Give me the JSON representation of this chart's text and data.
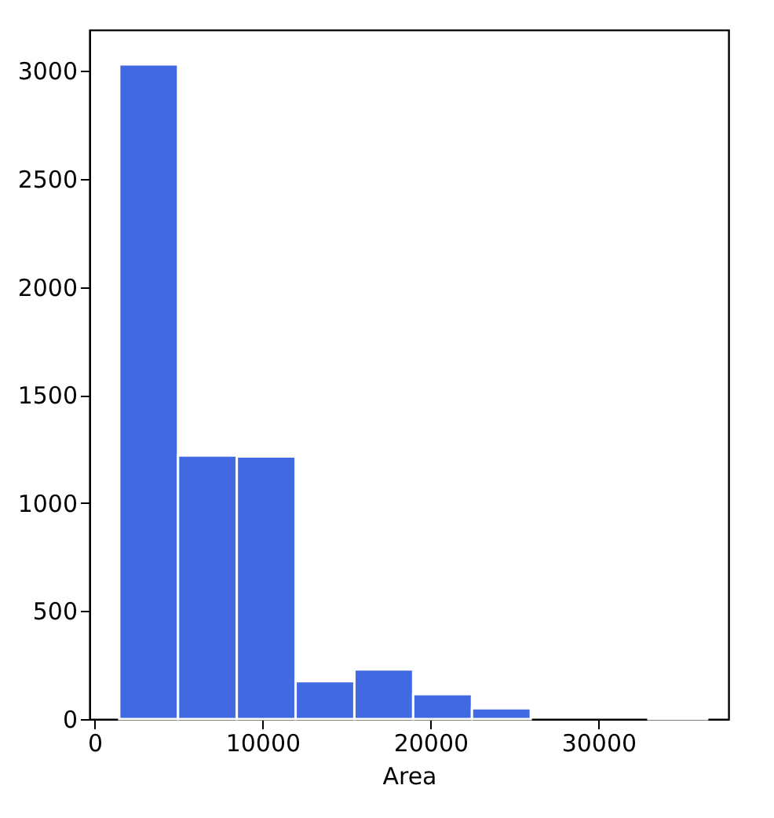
{
  "chart_data": {
    "type": "histogram",
    "xlabel": "Area",
    "bins": [
      1470,
      4970,
      8470,
      11970,
      15470,
      18970,
      22470,
      25970,
      29470,
      32970,
      36470
    ],
    "values": [
      3030,
      1220,
      1215,
      175,
      230,
      115,
      50,
      0,
      0,
      3
    ],
    "color": "#4169e1",
    "xlim": [
      -300,
      37740
    ],
    "xticks": [
      0,
      10000,
      20000,
      30000
    ],
    "ylim": [
      0,
      3190
    ],
    "yticks": [
      0,
      500,
      1000,
      1500,
      2000,
      2500,
      3000
    ],
    "grid": false
  }
}
